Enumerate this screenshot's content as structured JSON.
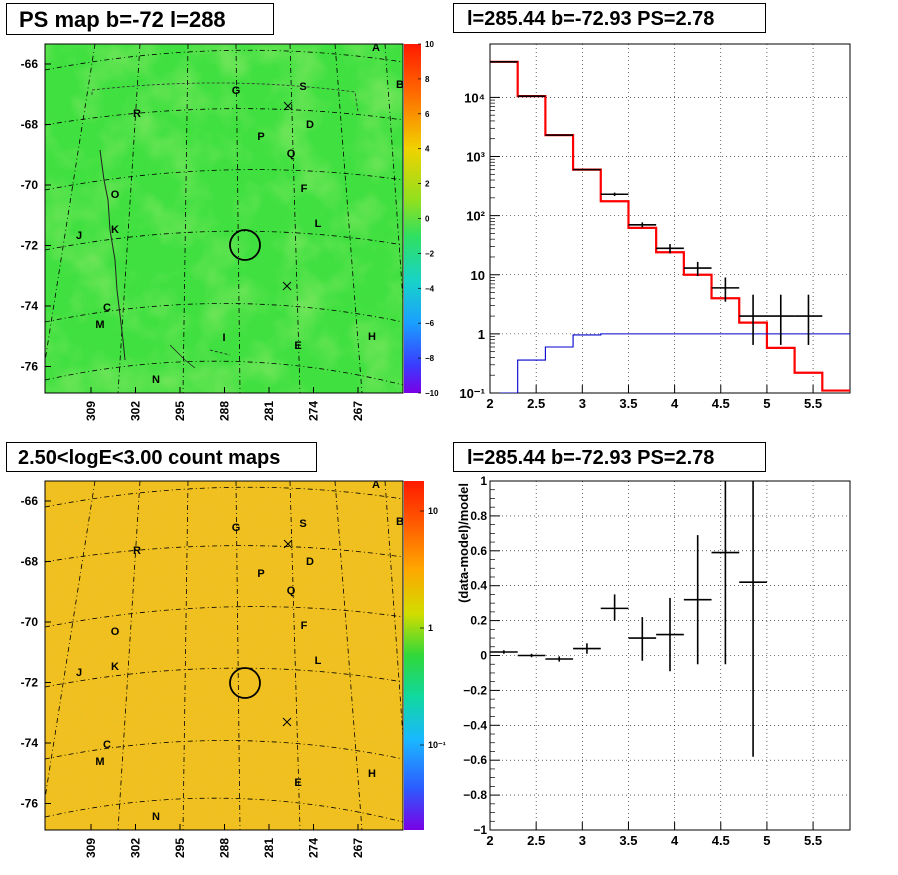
{
  "panels": {
    "map_top": {
      "title": "PS map b=-72 l=288",
      "y_ticks": [
        "-66",
        "-68",
        "-70",
        "-72",
        "-74",
        "-76"
      ],
      "x_ticks": [
        "309",
        "302",
        "295",
        "288",
        "281",
        "274",
        "267"
      ],
      "color_scale": {
        "type": "linear",
        "ticks": [
          "10",
          "8",
          "6",
          "4",
          "2",
          "0",
          "−2",
          "−4",
          "−6",
          "−8",
          "−10"
        ]
      },
      "source_labels": [
        "A",
        "B",
        "G",
        "S",
        "R",
        "D",
        "P",
        "Q",
        "O",
        "F",
        "J",
        "K",
        "L",
        "C",
        "M",
        "H",
        "E",
        "I",
        "N"
      ]
    },
    "map_bottom": {
      "title": "2.50<logE<3.00 count maps",
      "y_ticks": [
        "-66",
        "-68",
        "-70",
        "-72",
        "-74",
        "-76"
      ],
      "x_ticks": [
        "309",
        "302",
        "295",
        "288",
        "281",
        "274",
        "267"
      ],
      "color_scale": {
        "type": "log",
        "ticks": [
          "10",
          "1",
          "10⁻¹"
        ]
      },
      "source_labels": [
        "A",
        "B",
        "G",
        "S",
        "R",
        "D",
        "P",
        "Q",
        "O",
        "F",
        "J",
        "K",
        "L",
        "C",
        "M",
        "H",
        "E",
        "N"
      ]
    }
  },
  "chart_data": [
    {
      "type": "line",
      "title": "l=285.44 b=-72.93 PS=2.78",
      "xlabel": "",
      "ylabel": "",
      "xlim": [
        2,
        5.9
      ],
      "ylim": [
        0.1,
        80000
      ],
      "y_scale": "log",
      "grid": true,
      "x_ticks": [
        "2",
        "2.5",
        "3",
        "3.5",
        "4",
        "4.5",
        "5",
        "5.5"
      ],
      "y_ticks": [
        "10⁻¹",
        "1",
        "10",
        "10²",
        "10³",
        "10⁴"
      ],
      "series": [
        {
          "color": "#ff0000",
          "style": "step",
          "bin_edges": [
            2.0,
            2.3,
            2.6,
            2.9,
            3.2,
            3.5,
            3.8,
            4.1,
            4.4,
            4.7,
            5.0,
            5.3,
            5.6,
            5.9
          ],
          "values": [
            40000,
            10500,
            2300,
            600,
            175,
            62,
            24,
            10,
            4,
            1.55,
            0.58,
            0.22,
            0.11
          ]
        },
        {
          "color": "#0000cc",
          "style": "step",
          "bin_edges": [
            2.0,
            2.3,
            2.6,
            2.9,
            3.2,
            3.5,
            3.8,
            4.1,
            4.4,
            4.7,
            5.0,
            5.3,
            5.6,
            5.9
          ],
          "values": [
            0.1,
            0.36,
            0.6,
            0.96,
            1.0,
            1.0,
            1.0,
            1.0,
            1.0,
            1.0,
            1.0,
            1.0,
            1.0
          ]
        },
        {
          "color": "#000000",
          "style": "points_with_errors",
          "x": [
            2.15,
            2.45,
            2.75,
            3.05,
            3.35,
            3.65,
            3.95,
            4.25,
            4.55,
            4.85,
            5.15,
            5.45
          ],
          "y": [
            40000,
            10500,
            2300,
            600,
            230,
            70,
            28,
            13,
            6,
            2,
            2,
            2
          ],
          "y_err_low": [
            0,
            0,
            0,
            0,
            15,
            7,
            5,
            3.5,
            2.5,
            1.35,
            1.35,
            1.35
          ],
          "y_err_high": [
            0,
            0,
            0,
            0,
            15,
            7,
            5,
            3.5,
            3.0,
            2.6,
            2.6,
            2.6
          ]
        }
      ]
    },
    {
      "type": "scatter",
      "title": "l=285.44 b=-72.93 PS=2.78",
      "xlabel": "",
      "ylabel": "(data-model)/model",
      "xlim": [
        2,
        5.9
      ],
      "ylim": [
        -1,
        1
      ],
      "grid": true,
      "x_ticks": [
        "2",
        "2.5",
        "3",
        "3.5",
        "4",
        "4.5",
        "5",
        "5.5"
      ],
      "y_ticks": [
        "−1",
        "−0.8",
        "−0.6",
        "−0.4",
        "−0.2",
        "0",
        "0.2",
        "0.4",
        "0.6",
        "0.8",
        "1"
      ],
      "x": [
        2.15,
        2.45,
        2.75,
        3.05,
        3.35,
        3.65,
        3.95,
        4.25,
        4.55,
        4.85
      ],
      "y": [
        0.02,
        0.0,
        -0.02,
        0.04,
        0.27,
        0.1,
        0.12,
        0.32,
        0.59,
        0.42
      ],
      "y_err_low": [
        0.01,
        0.01,
        0.015,
        0.03,
        0.07,
        0.13,
        0.21,
        0.37,
        0.64,
        1.0
      ],
      "y_err_high": [
        0.01,
        0.01,
        0.015,
        0.03,
        0.08,
        0.12,
        0.21,
        0.37,
        0.41,
        0.58
      ],
      "x_err": 0.15
    }
  ]
}
